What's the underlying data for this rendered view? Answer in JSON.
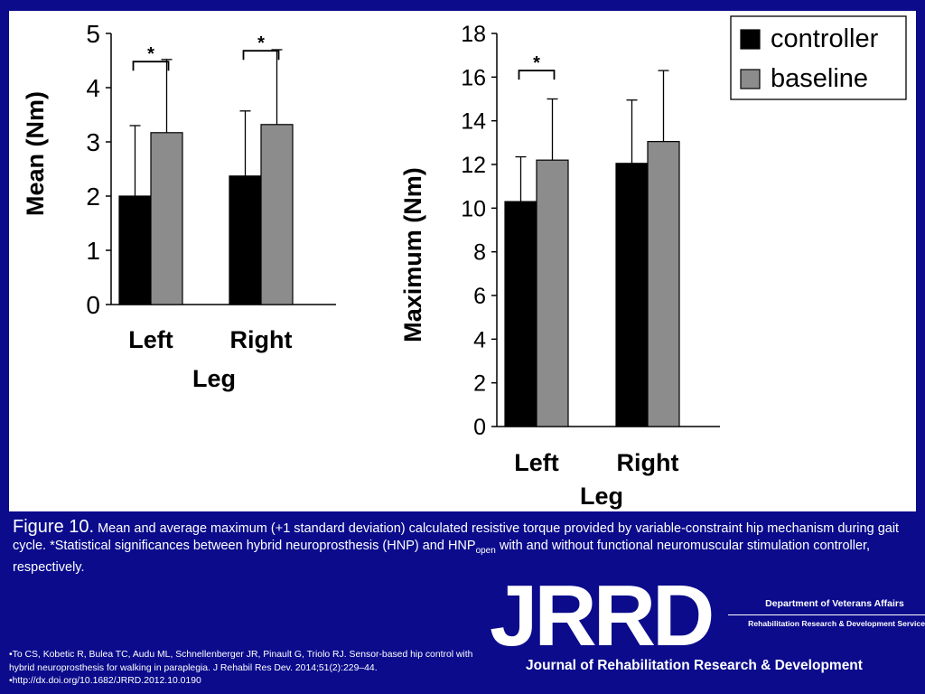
{
  "chart_data": [
    {
      "type": "bar",
      "xlabel": "Leg",
      "ylabel": "Mean (Nm)",
      "categories": [
        "Left",
        "Right"
      ],
      "ylim": [
        0,
        5
      ],
      "yticks": [
        "0",
        "1",
        "2",
        "3",
        "4",
        "5"
      ],
      "series": [
        {
          "name": "controller",
          "values": [
            2.0,
            2.37
          ],
          "error": [
            1.3,
            1.2
          ],
          "color": "#000000"
        },
        {
          "name": "baseline",
          "values": [
            3.17,
            3.32
          ],
          "error": [
            1.35,
            1.38
          ],
          "color": "#8c8c8c"
        }
      ],
      "significance": [
        {
          "category": "Left",
          "label": "*",
          "y": 4.48
        },
        {
          "category": "Right",
          "label": "*",
          "y": 4.68
        }
      ],
      "grid": false
    },
    {
      "type": "bar",
      "xlabel": "Leg",
      "ylabel": "Maximum (Nm)",
      "categories": [
        "Left",
        "Right"
      ],
      "ylim": [
        0,
        18
      ],
      "yticks": [
        "0",
        "2",
        "4",
        "6",
        "8",
        "10",
        "12",
        "14",
        "16",
        "18"
      ],
      "series": [
        {
          "name": "controller",
          "values": [
            10.3,
            12.05
          ],
          "error": [
            2.05,
            2.9
          ],
          "color": "#000000"
        },
        {
          "name": "baseline",
          "values": [
            12.2,
            13.05
          ],
          "error": [
            2.8,
            3.25
          ],
          "color": "#8c8c8c"
        }
      ],
      "significance": [
        {
          "category": "Left",
          "label": "*",
          "y": 16.3
        }
      ],
      "legend": {
        "position": "top-right",
        "entries": [
          "controller",
          "baseline"
        ]
      },
      "grid": false
    }
  ],
  "caption": {
    "label": "Figure 10.",
    "text_part1": " Mean and average maximum (+1 standard deviation) calculated resistive torque provided by variable-constraint hip mechanism during gait cycle. *Statistical significances between hybrid neuroprosthesis (HNP) and HNP",
    "subscript": "open",
    "text_part2": " with and without functional neuromuscular stimulation controller, respectively."
  },
  "references": [
    "•To CS, Kobetic R, Bulea TC, Audu ML, Schnellenberger JR, Pinault G, Triolo RJ. Sensor-based hip control with hybrid neuroprosthesis for walking in paraplegia. J Rehabil Res Dev. 2014;51(2):229–44.",
    "•http://dx.doi.org/10.1682/JRRD.2012.10.0190"
  ],
  "logo": {
    "wordmark": "JRRD",
    "department": "Department of Veterans Affairs",
    "service": "Rehabilitation Research & Development Service",
    "journal": "Journal of Rehabilitation Research & Development"
  },
  "colors": {
    "background": "#0b0b8c",
    "panel": "#ffffff",
    "controller": "#000000",
    "baseline": "#8c8c8c"
  }
}
